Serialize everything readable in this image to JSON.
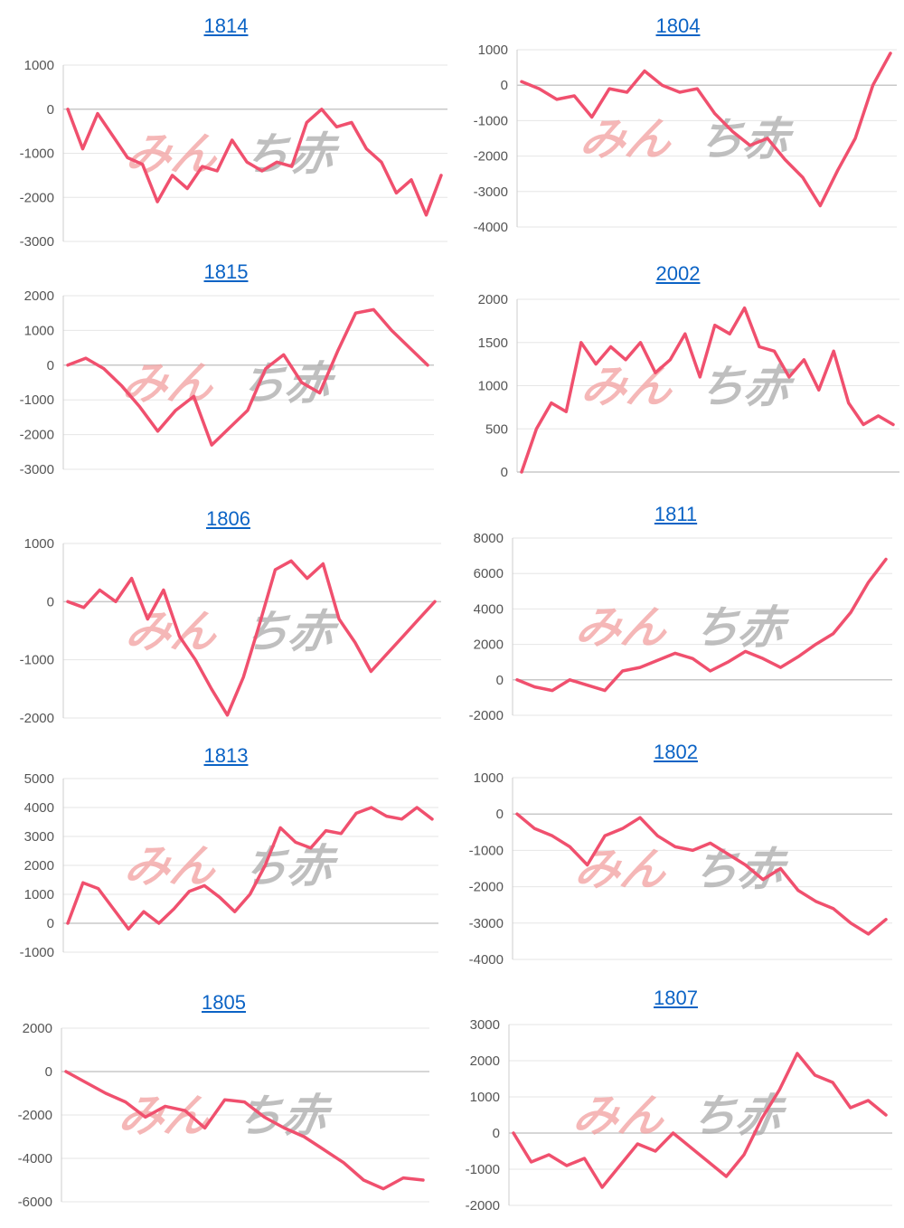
{
  "colors": {
    "line": "#f0506e",
    "grid": "#e6e6e6",
    "zero": "#c8c8c8",
    "axis": "#cccccc",
    "title": "#0b63c5",
    "tick": "#555555",
    "watermark_pink": "#f2a0a0",
    "watermark_gray": "#aaaaaa"
  },
  "watermark": {
    "text_left": "みん",
    "text_right": "ち赤"
  },
  "chart_data": [
    {
      "type": "line",
      "title": "1814",
      "yticks": [
        1000,
        0,
        -1000,
        -2000,
        -3000
      ],
      "ylim": [
        -3000,
        1000
      ],
      "values": [
        0,
        -900,
        -100,
        -600,
        -1100,
        -1250,
        -2100,
        -1500,
        -1800,
        -1300,
        -1400,
        -700,
        -1200,
        -1400,
        -1200,
        -1300,
        -300,
        0,
        -400,
        -300,
        -900,
        -1200,
        -1900,
        -1600,
        -2400,
        -1500
      ]
    },
    {
      "type": "line",
      "title": "1804",
      "yticks": [
        1000,
        0,
        -1000,
        -2000,
        -3000,
        -4000
      ],
      "ylim": [
        -4000,
        1000
      ],
      "values": [
        100,
        -100,
        -400,
        -300,
        -900,
        -100,
        -200,
        400,
        0,
        -200,
        -100,
        -800,
        -1300,
        -1700,
        -1500,
        -2100,
        -2600,
        -3400,
        -2400,
        -1500,
        0,
        900
      ]
    },
    {
      "type": "line",
      "title": "1815",
      "yticks": [
        2000,
        1000,
        0,
        -1000,
        -2000,
        -3000
      ],
      "ylim": [
        -3000,
        2000
      ],
      "values": [
        0,
        200,
        -100,
        -600,
        -1200,
        -1900,
        -1300,
        -900,
        -2300,
        -1800,
        -1300,
        -100,
        300,
        -500,
        -800,
        400,
        1500,
        1600,
        1000,
        500,
        0
      ]
    },
    {
      "type": "line",
      "title": "2002",
      "yticks": [
        2000,
        1500,
        1000,
        500,
        0
      ],
      "ylim": [
        0,
        2000
      ],
      "values": [
        0,
        500,
        800,
        700,
        1500,
        1250,
        1450,
        1300,
        1500,
        1150,
        1300,
        1600,
        1100,
        1700,
        1600,
        1900,
        1450,
        1400,
        1100,
        1300,
        950,
        1400,
        800,
        550,
        650,
        550
      ]
    },
    {
      "type": "line",
      "title": "1806",
      "yticks": [
        1000,
        0,
        -1000,
        -2000
      ],
      "ylim": [
        -2000,
        1000
      ],
      "values": [
        0,
        -100,
        200,
        0,
        400,
        -300,
        200,
        -600,
        -1000,
        -1500,
        -1950,
        -1300,
        -400,
        550,
        700,
        400,
        650,
        -300,
        -700,
        -1200,
        -900,
        -600,
        -300,
        0
      ]
    },
    {
      "type": "line",
      "title": "1811",
      "yticks": [
        8000,
        6000,
        4000,
        2000,
        0,
        -2000
      ],
      "ylim": [
        -2000,
        8000
      ],
      "values": [
        0,
        -400,
        -600,
        0,
        -300,
        -600,
        500,
        700,
        1100,
        1500,
        1200,
        500,
        1000,
        1600,
        1200,
        700,
        1300,
        2000,
        2600,
        3800,
        5500,
        6800
      ]
    },
    {
      "type": "line",
      "title": "1813",
      "yticks": [
        5000,
        4000,
        3000,
        2000,
        1000,
        0,
        -1000
      ],
      "ylim": [
        -1000,
        5000
      ],
      "values": [
        0,
        1400,
        1200,
        500,
        -200,
        400,
        0,
        500,
        1100,
        1300,
        900,
        400,
        1000,
        2000,
        3300,
        2800,
        2600,
        3200,
        3100,
        3800,
        4000,
        3700,
        3600,
        4000,
        3600
      ]
    },
    {
      "type": "line",
      "title": "1802",
      "yticks": [
        1000,
        0,
        -1000,
        -2000,
        -3000,
        -4000
      ],
      "ylim": [
        -4000,
        1000
      ],
      "values": [
        0,
        -400,
        -600,
        -900,
        -1400,
        -600,
        -400,
        -100,
        -600,
        -900,
        -1000,
        -800,
        -1100,
        -1400,
        -1800,
        -1500,
        -2100,
        -2400,
        -2600,
        -3000,
        -3300,
        -2900
      ]
    },
    {
      "type": "line",
      "title": "1805",
      "yticks": [
        2000,
        0,
        -2000,
        -4000,
        -6000
      ],
      "ylim": [
        -6000,
        2000
      ],
      "values": [
        0,
        -500,
        -1000,
        -1400,
        -2100,
        -1600,
        -1800,
        -2600,
        -1300,
        -1400,
        -2100,
        -2600,
        -3000,
        -3600,
        -4200,
        -5000,
        -5400,
        -4900,
        -5000
      ]
    },
    {
      "type": "line",
      "title": "1807",
      "yticks": [
        3000,
        2000,
        1000,
        0,
        -1000,
        -2000
      ],
      "ylim": [
        -2000,
        3000
      ],
      "values": [
        0,
        -800,
        -600,
        -900,
        -700,
        -1500,
        -900,
        -300,
        -500,
        0,
        -400,
        -800,
        -1200,
        -600,
        400,
        1200,
        2200,
        1600,
        1400,
        700,
        900,
        500
      ]
    }
  ]
}
